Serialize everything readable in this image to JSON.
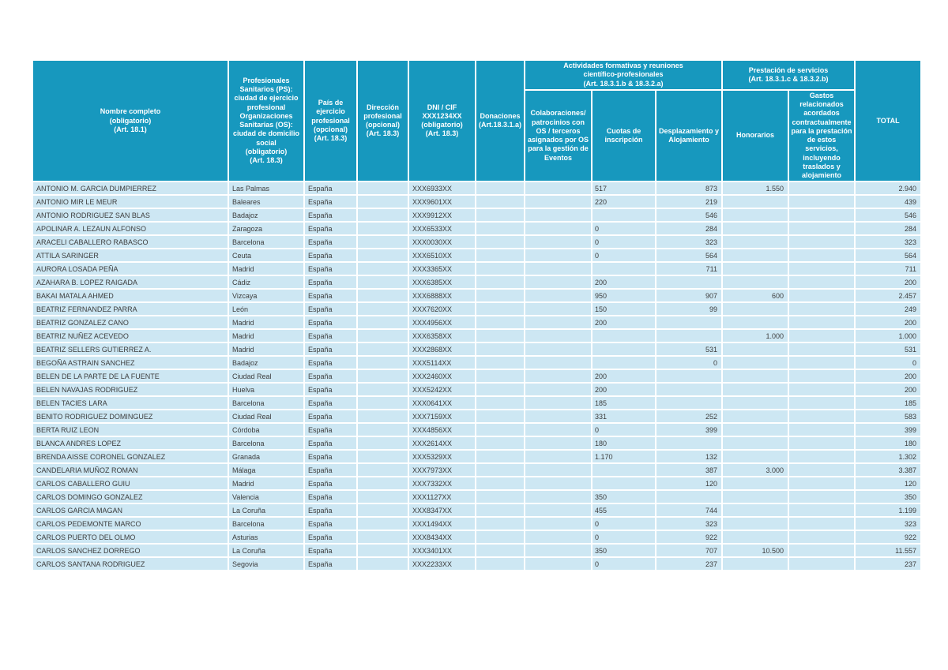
{
  "colors": {
    "header_bg": "#1798be",
    "row_bg": "#cde7f3",
    "grid": "#ffffff",
    "header_text": "#ffffff",
    "body_text": "#3d3d3d"
  },
  "header": {
    "nombre": "Nombre completo\n(obligatorio)\n(Art. 18.1)",
    "ciudad": "Profesionales\nSanitarios (PS):\nciudad de ejercicio\nprofesional\nOrganizaciones\nSanitarias (OS):\nciudad de domicilio\nsocial\n(obligatorio)\n(Art. 18.3)",
    "pais": "País de ejercicio\nprofesional\n(opcional)\n(Art. 18.3)",
    "direccion": "Dirección\nprofesional\n(opcional)\n(Art. 18.3)",
    "dni": "DNI / CIF\nXXX1234XX\n(obligatorio)\n(Art. 18.3)",
    "donaciones": "Donaciones\n(Art.18.3.1.a)",
    "group_actividades": "Actividades formativas y reuniones\ncientífico-profesionales\n(Art. 18.3.1.b & 18.3.2.a)",
    "colaboraciones": "Colaboraciones/\npatrocinios con\nOS / terceros\nasignados por OS\npara la gestión de\nEventos",
    "cuotas": "Cuotas de\ninscripción",
    "desplazamiento": "Desplazamiento y\nAlojamiento",
    "group_prestacion": "Prestación de servicios\n(Art. 18.3.1.c & 18.3.2.b)",
    "honorarios": "Honorarios",
    "gastos": "Gastos\nrelacionados\nacordados\ncontractualmente\npara la prestación\nde estos servicios,\nincluyendo\ntraslados y\nalojamiento",
    "total": "TOTAL"
  },
  "rows": [
    {
      "name": "ANTONIO M. GARCIA DUMPIERREZ",
      "city": "Las Palmas",
      "country": "España",
      "address": "",
      "dni": "XXX6933XX",
      "donaciones": "",
      "colaboraciones": "",
      "cuotas": "517",
      "desplazamiento": "873",
      "honorarios": "1.550",
      "gastos": "",
      "total": "2.940"
    },
    {
      "name": "ANTONIO MIR LE MEUR",
      "city": "Baleares",
      "country": "España",
      "address": "",
      "dni": "XXX9601XX",
      "donaciones": "",
      "colaboraciones": "",
      "cuotas": "220",
      "desplazamiento": "219",
      "honorarios": "",
      "gastos": "",
      "total": "439"
    },
    {
      "name": "ANTONIO RODRIGUEZ SAN BLAS",
      "city": "Badajoz",
      "country": "España",
      "address": "",
      "dni": "XXX9912XX",
      "donaciones": "",
      "colaboraciones": "",
      "cuotas": "",
      "desplazamiento": "546",
      "honorarios": "",
      "gastos": "",
      "total": "546"
    },
    {
      "name": "APOLINAR A. LEZAUN ALFONSO",
      "city": "Zaragoza",
      "country": "España",
      "address": "",
      "dni": "XXX6533XX",
      "donaciones": "",
      "colaboraciones": "",
      "cuotas": "0",
      "desplazamiento": "284",
      "honorarios": "",
      "gastos": "",
      "total": "284"
    },
    {
      "name": "ARACELI CABALLERO RABASCO",
      "city": "Barcelona",
      "country": "España",
      "address": "",
      "dni": "XXX0030XX",
      "donaciones": "",
      "colaboraciones": "",
      "cuotas": "0",
      "desplazamiento": "323",
      "honorarios": "",
      "gastos": "",
      "total": "323"
    },
    {
      "name": "ATTILA SARINGER",
      "city": "Ceuta",
      "country": "España",
      "address": "",
      "dni": "XXX6510XX",
      "donaciones": "",
      "colaboraciones": "",
      "cuotas": "0",
      "desplazamiento": "564",
      "honorarios": "",
      "gastos": "",
      "total": "564"
    },
    {
      "name": "AURORA LOSADA PEÑA",
      "city": "Madrid",
      "country": "España",
      "address": "",
      "dni": "XXX3365XX",
      "donaciones": "",
      "colaboraciones": "",
      "cuotas": "",
      "desplazamiento": "711",
      "honorarios": "",
      "gastos": "",
      "total": "711"
    },
    {
      "name": "AZAHARA B. LOPEZ RAIGADA",
      "city": "Cádiz",
      "country": "España",
      "address": "",
      "dni": "XXX6385XX",
      "donaciones": "",
      "colaboraciones": "",
      "cuotas": "200",
      "desplazamiento": "",
      "honorarios": "",
      "gastos": "",
      "total": "200"
    },
    {
      "name": "BAKAI MATALA AHMED",
      "city": "Vizcaya",
      "country": "España",
      "address": "",
      "dni": "XXX6888XX",
      "donaciones": "",
      "colaboraciones": "",
      "cuotas": "950",
      "desplazamiento": "907",
      "honorarios": "600",
      "gastos": "",
      "total": "2.457"
    },
    {
      "name": "BEATRIZ FERNANDEZ PARRA",
      "city": "León",
      "country": "España",
      "address": "",
      "dni": "XXX7620XX",
      "donaciones": "",
      "colaboraciones": "",
      "cuotas": "150",
      "desplazamiento": "99",
      "honorarios": "",
      "gastos": "",
      "total": "249"
    },
    {
      "name": "BEATRIZ GONZALEZ CANO",
      "city": "Madrid",
      "country": "España",
      "address": "",
      "dni": "XXX4956XX",
      "donaciones": "",
      "colaboraciones": "",
      "cuotas": "200",
      "desplazamiento": "",
      "honorarios": "",
      "gastos": "",
      "total": "200"
    },
    {
      "name": "BEATRIZ NUÑEZ ACEVEDO",
      "city": "Madrid",
      "country": "España",
      "address": "",
      "dni": "XXX6358XX",
      "donaciones": "",
      "colaboraciones": "",
      "cuotas": "",
      "desplazamiento": "",
      "honorarios": "1.000",
      "gastos": "",
      "total": "1.000"
    },
    {
      "name": "BEATRIZ SELLERS GUTIERREZ A.",
      "city": "Madrid",
      "country": "España",
      "address": "",
      "dni": "XXX2868XX",
      "donaciones": "",
      "colaboraciones": "",
      "cuotas": "",
      "desplazamiento": "531",
      "honorarios": "",
      "gastos": "",
      "total": "531"
    },
    {
      "name": "BEGOÑA ASTRAIN SANCHEZ",
      "city": "Badajoz",
      "country": "España",
      "address": "",
      "dni": "XXX5114XX",
      "donaciones": "",
      "colaboraciones": "",
      "cuotas": "",
      "desplazamiento": "0",
      "honorarios": "",
      "gastos": "",
      "total": "0"
    },
    {
      "name": "BELEN DE LA PARTE DE LA FUENTE",
      "city": "Ciudad Real",
      "country": "España",
      "address": "",
      "dni": "XXX2460XX",
      "donaciones": "",
      "colaboraciones": "",
      "cuotas": "200",
      "desplazamiento": "",
      "honorarios": "",
      "gastos": "",
      "total": "200"
    },
    {
      "name": "BELEN NAVAJAS RODRIGUEZ",
      "city": "Huelva",
      "country": "España",
      "address": "",
      "dni": "XXX5242XX",
      "donaciones": "",
      "colaboraciones": "",
      "cuotas": "200",
      "desplazamiento": "",
      "honorarios": "",
      "gastos": "",
      "total": "200"
    },
    {
      "name": "BELEN TACIES LARA",
      "city": "Barcelona",
      "country": "España",
      "address": "",
      "dni": "XXX0641XX",
      "donaciones": "",
      "colaboraciones": "",
      "cuotas": "185",
      "desplazamiento": "",
      "honorarios": "",
      "gastos": "",
      "total": "185"
    },
    {
      "name": "BENITO RODRIGUEZ DOMINGUEZ",
      "city": "Ciudad Real",
      "country": "España",
      "address": "",
      "dni": "XXX7159XX",
      "donaciones": "",
      "colaboraciones": "",
      "cuotas": "331",
      "desplazamiento": "252",
      "honorarios": "",
      "gastos": "",
      "total": "583"
    },
    {
      "name": "BERTA RUIZ LEON",
      "city": "Córdoba",
      "country": "España",
      "address": "",
      "dni": "XXX4856XX",
      "donaciones": "",
      "colaboraciones": "",
      "cuotas": "0",
      "desplazamiento": "399",
      "honorarios": "",
      "gastos": "",
      "total": "399"
    },
    {
      "name": "BLANCA ANDRES LOPEZ",
      "city": "Barcelona",
      "country": "España",
      "address": "",
      "dni": "XXX2614XX",
      "donaciones": "",
      "colaboraciones": "",
      "cuotas": "180",
      "desplazamiento": "",
      "honorarios": "",
      "gastos": "",
      "total": "180"
    },
    {
      "name": "BRENDA AISSE CORONEL GONZALEZ",
      "city": "Granada",
      "country": "España",
      "address": "",
      "dni": "XXX5329XX",
      "donaciones": "",
      "colaboraciones": "",
      "cuotas": "1.170",
      "desplazamiento": "132",
      "honorarios": "",
      "gastos": "",
      "total": "1.302"
    },
    {
      "name": "CANDELARIA MUÑOZ ROMAN",
      "city": "Málaga",
      "country": "España",
      "address": "",
      "dni": "XXX7973XX",
      "donaciones": "",
      "colaboraciones": "",
      "cuotas": "",
      "desplazamiento": "387",
      "honorarios": "3.000",
      "gastos": "",
      "total": "3.387"
    },
    {
      "name": "CARLOS CABALLERO GUIU",
      "city": "Madrid",
      "country": "España",
      "address": "",
      "dni": "XXX7332XX",
      "donaciones": "",
      "colaboraciones": "",
      "cuotas": "",
      "desplazamiento": "120",
      "honorarios": "",
      "gastos": "",
      "total": "120"
    },
    {
      "name": "CARLOS DOMINGO GONZALEZ",
      "city": "Valencia",
      "country": "España",
      "address": "",
      "dni": "XXX1127XX",
      "donaciones": "",
      "colaboraciones": "",
      "cuotas": "350",
      "desplazamiento": "",
      "honorarios": "",
      "gastos": "",
      "total": "350"
    },
    {
      "name": "CARLOS GARCIA MAGAN",
      "city": "La Coruña",
      "country": "España",
      "address": "",
      "dni": "XXX8347XX",
      "donaciones": "",
      "colaboraciones": "",
      "cuotas": "455",
      "desplazamiento": "744",
      "honorarios": "",
      "gastos": "",
      "total": "1.199"
    },
    {
      "name": "CARLOS PEDEMONTE MARCO",
      "city": "Barcelona",
      "country": "España",
      "address": "",
      "dni": "XXX1494XX",
      "donaciones": "",
      "colaboraciones": "",
      "cuotas": "0",
      "desplazamiento": "323",
      "honorarios": "",
      "gastos": "",
      "total": "323"
    },
    {
      "name": "CARLOS PUERTO DEL OLMO",
      "city": "Asturias",
      "country": "España",
      "address": "",
      "dni": "XXX8434XX",
      "donaciones": "",
      "colaboraciones": "",
      "cuotas": "0",
      "desplazamiento": "922",
      "honorarios": "",
      "gastos": "",
      "total": "922"
    },
    {
      "name": "CARLOS SANCHEZ DORREGO",
      "city": "La Coruña",
      "country": "España",
      "address": "",
      "dni": "XXX3401XX",
      "donaciones": "",
      "colaboraciones": "",
      "cuotas": "350",
      "desplazamiento": "707",
      "honorarios": "10.500",
      "gastos": "",
      "total": "11.557"
    },
    {
      "name": "CARLOS SANTANA RODRIGUEZ",
      "city": "Segovia",
      "country": "España",
      "address": "",
      "dni": "XXX2233XX",
      "donaciones": "",
      "colaboraciones": "",
      "cuotas": "0",
      "desplazamiento": "237",
      "honorarios": "",
      "gastos": "",
      "total": "237"
    }
  ]
}
